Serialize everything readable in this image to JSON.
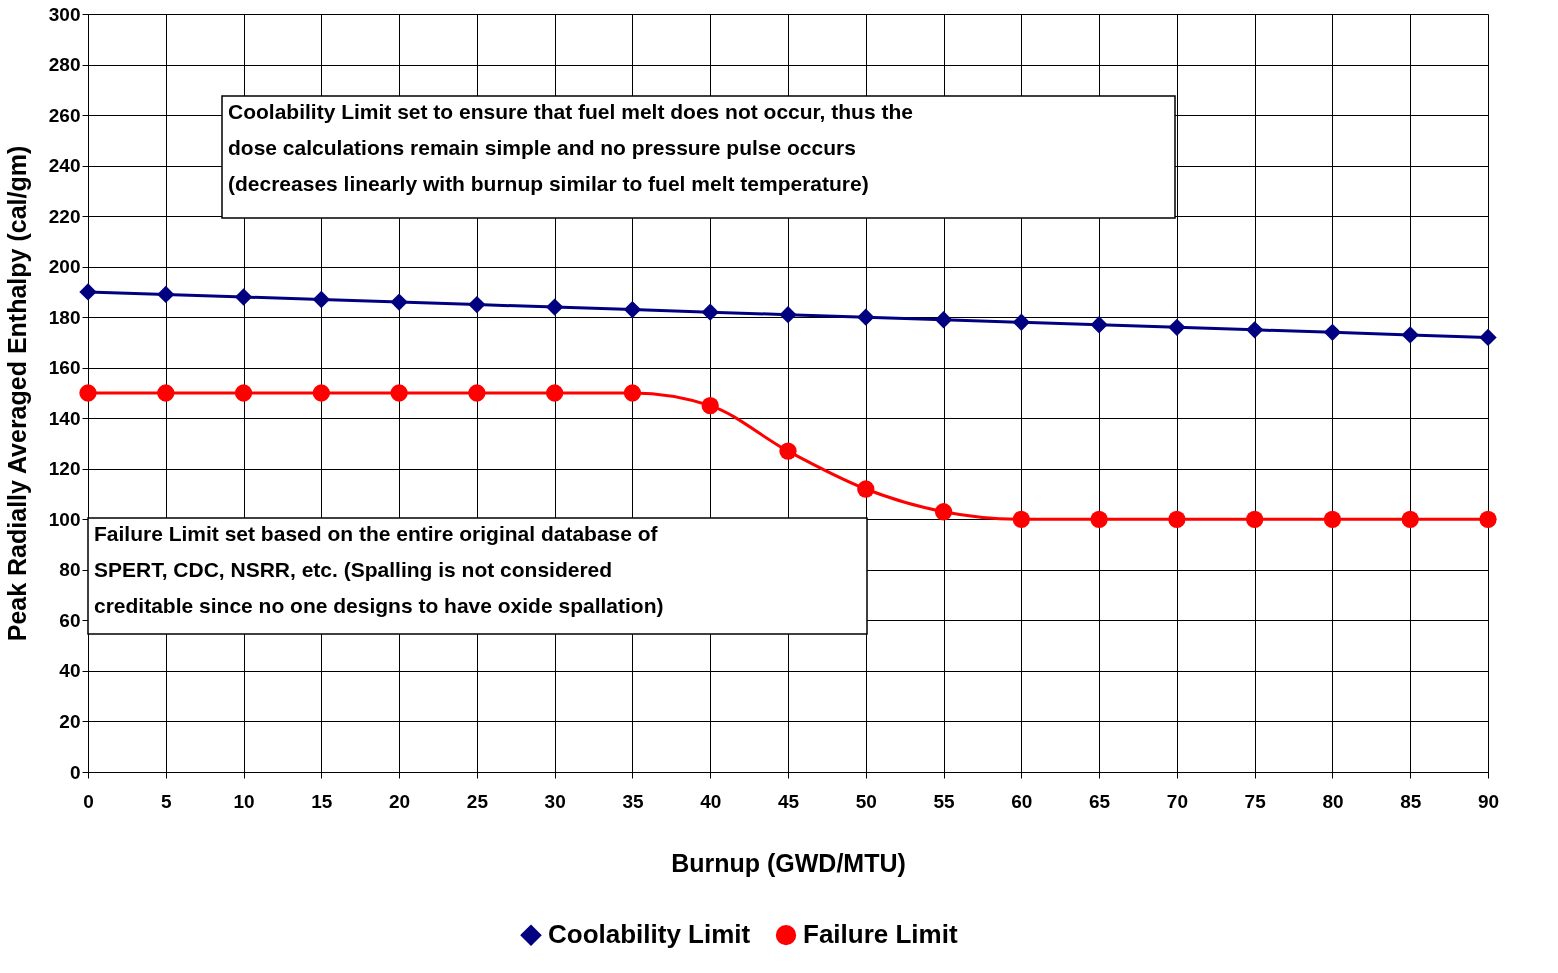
{
  "chart_data": {
    "type": "line",
    "xlabel": "Burnup (GWD/MTU)",
    "ylabel": "Peak Radially Averaged Enthalpy (cal/gm)",
    "x": [
      0,
      5,
      10,
      15,
      20,
      25,
      30,
      35,
      40,
      45,
      50,
      55,
      60,
      65,
      70,
      75,
      80,
      85,
      90
    ],
    "series": [
      {
        "name": "Coolability Limit",
        "color": "#000080",
        "marker": "diamond",
        "values": [
          190,
          189,
          188,
          187,
          186,
          185,
          184,
          183,
          182,
          181,
          180,
          179,
          178,
          177,
          176,
          175,
          174,
          173,
          172
        ]
      },
      {
        "name": "Failure Limit",
        "color": "#ff0000",
        "marker": "circle",
        "values": [
          150,
          150,
          150,
          150,
          150,
          150,
          150,
          150,
          145,
          127,
          112,
          103,
          100,
          100,
          100,
          100,
          100,
          100,
          100
        ]
      }
    ],
    "xlim": [
      0,
      90
    ],
    "xticks": [
      0,
      5,
      10,
      15,
      20,
      25,
      30,
      35,
      40,
      45,
      50,
      55,
      60,
      65,
      70,
      75,
      80,
      85,
      90
    ],
    "ylim": [
      0,
      300
    ],
    "yticks": [
      0,
      20,
      40,
      60,
      80,
      100,
      120,
      140,
      160,
      180,
      200,
      220,
      240,
      260,
      280,
      300
    ],
    "grid": true,
    "legend": "bottom",
    "line_style": "solid",
    "annotations": [
      "Coolability Limit set to ensure that fuel melt does not occur, thus the\ndose calculations remain simple and no pressure pulse occurs\n(decreases linearly with burnup similar to fuel melt temperature)",
      "Failure Limit set based on the entire original database of\nSPERT, CDC, NSRR, etc. (Spalling is not considered\ncreditable since no one designs to have oxide spallation)"
    ]
  }
}
